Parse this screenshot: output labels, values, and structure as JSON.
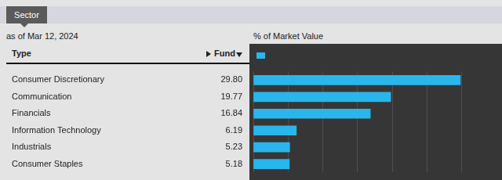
{
  "chart_data": {
    "type": "bar",
    "title": "Sector",
    "subtitle": "as of Mar 12, 2024",
    "x_label": "% of Market Value",
    "column_headers": [
      "Type",
      "Fund"
    ],
    "orientation": "horizontal",
    "categories": [
      "Consumer Discretionary",
      "Communication",
      "Financials",
      "Information Technology",
      "Industrials",
      "Consumer Staples"
    ],
    "values": [
      29.8,
      19.77,
      16.84,
      6.19,
      5.23,
      5.18
    ],
    "value_labels": [
      "29.80",
      "19.77",
      "16.84",
      "6.19",
      "5.23",
      "5.18"
    ],
    "color": "#29b6ec",
    "xlim": [
      0,
      35
    ],
    "xticks": [
      0,
      5,
      10,
      15,
      20,
      25,
      30,
      35
    ],
    "grid": true,
    "data_labels": true,
    "tick_labels": "y"
  }
}
